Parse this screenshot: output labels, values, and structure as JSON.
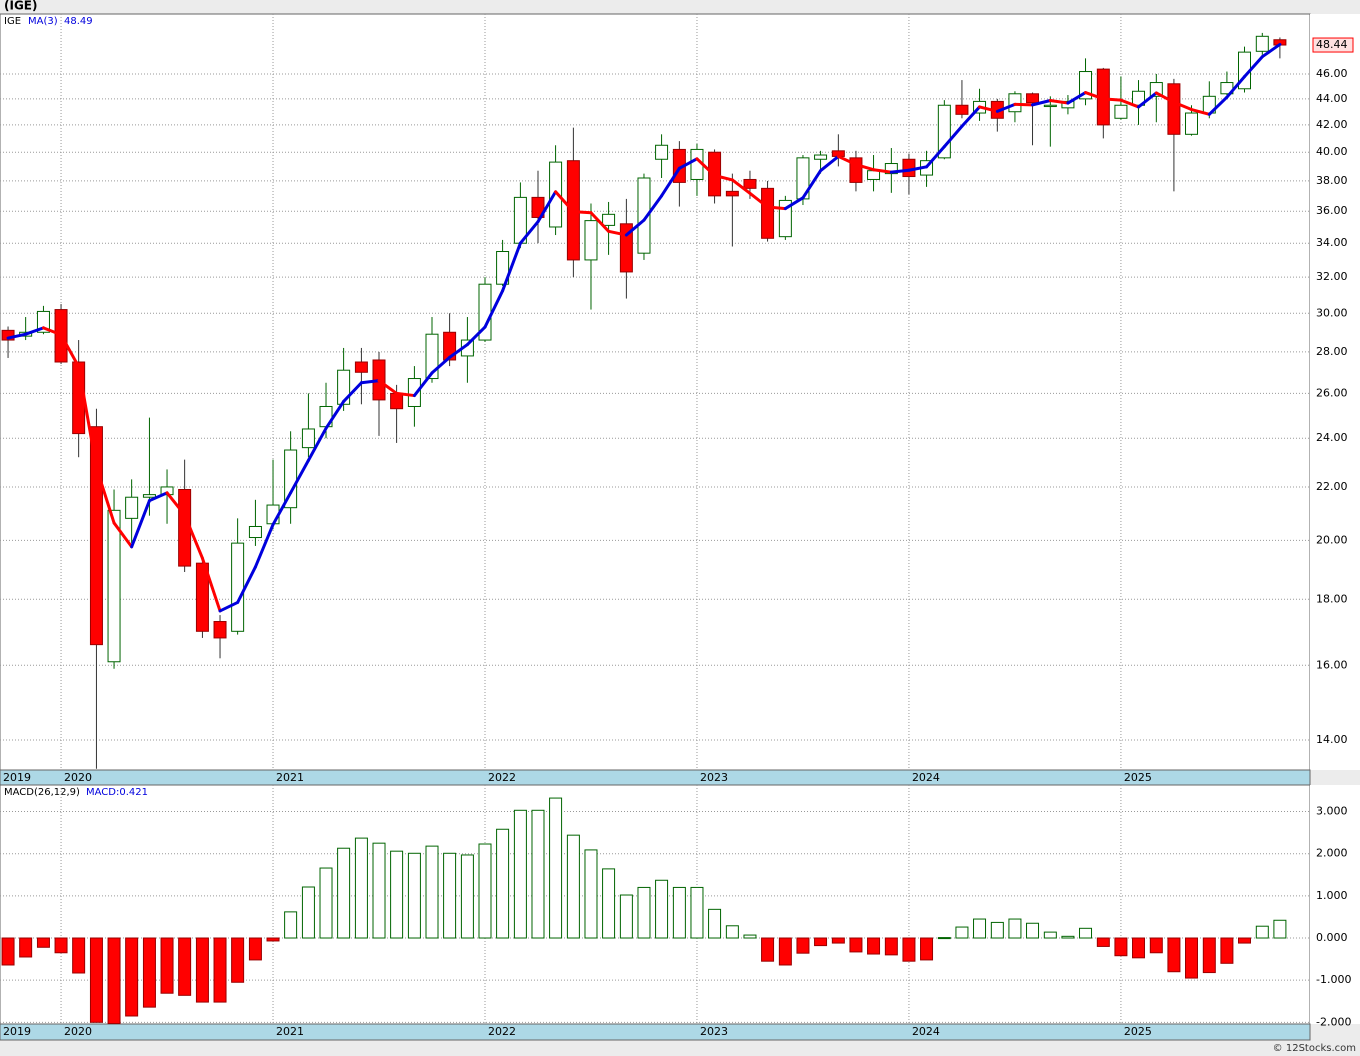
{
  "header": {
    "title": "(IGE)"
  },
  "footer": {
    "text": "© 12Stocks.com"
  },
  "chart_data": [
    {
      "type": "candlestick",
      "ticker": "IGE",
      "log_scale": true,
      "grid": true,
      "legend": "top-left",
      "up_color": "#006400",
      "down_color": "#ff0000",
      "xlim": [
        2019.712,
        2025.892
      ],
      "xticks": [
        {
          "value": 2019.712,
          "label": "2019"
        },
        2020,
        2021,
        2022,
        2023,
        2024,
        2025
      ],
      "ylim": [
        13.27,
        51.2
      ],
      "yticks": [
        {
          "value": 14,
          "label": "14.00"
        },
        {
          "value": 16,
          "label": "16.00"
        },
        {
          "value": 18,
          "label": "18.00"
        },
        {
          "value": 20,
          "label": "20.00"
        },
        {
          "value": 22,
          "label": "22.00"
        },
        {
          "value": 24,
          "label": "24.00"
        },
        {
          "value": 26,
          "label": "26.00"
        },
        {
          "value": 28,
          "label": "28.00"
        },
        {
          "value": 30,
          "label": "30.00"
        },
        {
          "value": 32,
          "label": "32.00"
        },
        {
          "value": 34,
          "label": "34.00"
        },
        {
          "value": 36,
          "label": "36.00"
        },
        {
          "value": 38,
          "label": "38.00"
        },
        {
          "value": 40,
          "label": "40.00"
        },
        {
          "value": 42,
          "label": "42.00"
        },
        {
          "value": 44,
          "label": "44.00"
        },
        {
          "value": 46,
          "label": "46.00"
        }
      ],
      "x": [
        2019.75,
        2019.833,
        2019.917,
        2020,
        2020.083,
        2020.167,
        2020.25,
        2020.333,
        2020.417,
        2020.5,
        2020.583,
        2020.667,
        2020.75,
        2020.833,
        2020.917,
        2021,
        2021.083,
        2021.167,
        2021.25,
        2021.333,
        2021.417,
        2021.5,
        2021.583,
        2021.667,
        2021.75,
        2021.833,
        2021.917,
        2022,
        2022.083,
        2022.167,
        2022.25,
        2022.333,
        2022.417,
        2022.5,
        2022.583,
        2022.667,
        2022.75,
        2022.833,
        2022.917,
        2023,
        2023.083,
        2023.167,
        2023.25,
        2023.333,
        2023.417,
        2023.5,
        2023.583,
        2023.667,
        2023.75,
        2023.833,
        2023.917,
        2024,
        2024.083,
        2024.167,
        2024.25,
        2024.333,
        2024.417,
        2024.5,
        2024.583,
        2024.667,
        2024.75,
        2024.833,
        2024.917,
        2025,
        2025.083,
        2025.167,
        2025.25,
        2025.333,
        2025.417,
        2025.5,
        2025.583,
        2025.667,
        2025.75
      ],
      "open": [
        29.1,
        28.8,
        29.0,
        30.2,
        27.5,
        24.5,
        16.1,
        20.8,
        21.6,
        21.7,
        21.9,
        19.2,
        17.3,
        17.0,
        20.1,
        20.6,
        21.2,
        23.6,
        24.5,
        25.5,
        27.5,
        27.6,
        26.0,
        25.4,
        26.7,
        29.0,
        27.8,
        28.6,
        31.6,
        34.0,
        36.9,
        35.0,
        39.4,
        33.0,
        35.1,
        35.2,
        33.4,
        39.5,
        40.2,
        38.1,
        40.0,
        37.3,
        38.1,
        37.5,
        34.4,
        36.8,
        39.5,
        40.1,
        39.6,
        38.1,
        38.5,
        39.5,
        38.4,
        39.6,
        43.5,
        42.9,
        43.8,
        43.0,
        44.4,
        43.4,
        43.3,
        44.0,
        46.4,
        42.5,
        43.5,
        44.2,
        45.2,
        41.3,
        42.9,
        44.4,
        44.8,
        47.9,
        48.9
      ],
      "high": [
        29.3,
        29.8,
        30.4,
        30.5,
        28.6,
        25.3,
        21.9,
        22.3,
        24.9,
        22.7,
        23.1,
        19.4,
        17.5,
        20.8,
        21.5,
        23.1,
        24.3,
        26.0,
        26.5,
        28.2,
        28.2,
        28.0,
        26.4,
        27.3,
        29.8,
        30.0,
        29.8,
        32.0,
        34.2,
        37.9,
        38.7,
        40.5,
        41.8,
        36.5,
        36.6,
        36.8,
        38.5,
        41.3,
        40.8,
        40.6,
        40.2,
        38.5,
        38.7,
        38.0,
        37.0,
        39.8,
        40.1,
        41.3,
        40.1,
        39.8,
        40.3,
        39.9,
        40.1,
        43.9,
        45.5,
        44.8,
        44.0,
        44.6,
        44.5,
        44.2,
        44.3,
        47.3,
        46.5,
        45.8,
        45.5,
        46.0,
        45.6,
        43.5,
        45.4,
        46.2,
        48.3,
        49.5,
        49.1
      ],
      "low": [
        27.7,
        28.6,
        28.9,
        27.4,
        23.2,
        13.3,
        15.9,
        19.9,
        20.9,
        20.6,
        18.9,
        16.8,
        16.2,
        16.9,
        19.8,
        20.4,
        20.6,
        23.2,
        24.0,
        25.2,
        25.5,
        24.1,
        23.8,
        24.5,
        26.5,
        27.3,
        26.5,
        28.5,
        31.5,
        33.7,
        34.0,
        34.5,
        32.0,
        30.2,
        33.3,
        30.8,
        33.0,
        38.2,
        36.3,
        37.0,
        36.5,
        33.8,
        36.8,
        34.1,
        34.2,
        36.4,
        38.5,
        39.0,
        37.3,
        37.3,
        37.2,
        37.1,
        37.6,
        39.5,
        42.5,
        42.3,
        41.5,
        42.2,
        40.5,
        40.4,
        42.8,
        43.5,
        41.0,
        42.4,
        42.0,
        42.2,
        37.3,
        41.2,
        42.5,
        44.3,
        44.5,
        47.6,
        47.3
      ],
      "close": [
        28.6,
        29.0,
        30.1,
        27.5,
        24.2,
        16.6,
        21.1,
        21.6,
        21.7,
        22.0,
        19.1,
        17.0,
        16.8,
        19.9,
        20.5,
        21.3,
        23.5,
        24.4,
        25.4,
        27.1,
        27.0,
        25.7,
        25.3,
        26.7,
        28.9,
        27.6,
        28.6,
        31.6,
        33.5,
        36.9,
        35.6,
        39.3,
        33.0,
        35.4,
        35.8,
        32.3,
        38.2,
        40.5,
        37.9,
        40.2,
        37.0,
        37.0,
        37.5,
        34.3,
        36.7,
        39.6,
        39.8,
        39.7,
        37.9,
        38.7,
        39.2,
        38.3,
        39.4,
        43.5,
        42.8,
        43.8,
        42.5,
        44.4,
        43.7,
        43.5,
        43.8,
        46.2,
        42.0,
        43.5,
        44.6,
        45.3,
        41.3,
        42.9,
        44.2,
        45.3,
        47.83,
        49.2,
        48.44
      ],
      "series": [
        {
          "name": "MA(3)",
          "color": "#0000dd",
          "up_color": "#0000dd",
          "down_color": "#ff0000",
          "values": [
            28.7,
            28.9,
            29.23,
            28.87,
            27.27,
            22.77,
            20.63,
            19.77,
            21.47,
            21.77,
            20.93,
            19.37,
            17.63,
            17.9,
            19.07,
            20.57,
            21.77,
            23.07,
            24.43,
            25.63,
            26.5,
            26.6,
            26.0,
            25.9,
            26.97,
            27.73,
            28.37,
            29.27,
            31.23,
            34.0,
            35.33,
            37.27,
            35.97,
            35.9,
            34.73,
            34.5,
            35.43,
            37.0,
            38.87,
            39.53,
            38.37,
            38.07,
            37.17,
            36.27,
            36.17,
            36.87,
            38.7,
            39.7,
            39.13,
            38.77,
            38.6,
            38.73,
            38.97,
            40.4,
            41.9,
            43.37,
            43.03,
            43.57,
            43.53,
            43.87,
            43.67,
            44.5,
            44.0,
            43.9,
            43.37,
            44.47,
            43.73,
            43.17,
            42.8,
            44.13,
            45.78,
            47.44,
            48.49
          ]
        }
      ]
    },
    {
      "type": "bar",
      "title": "MACD(26,12,9)",
      "legend_text": "MACD:0.421",
      "grid": true,
      "pos_color": "#006400",
      "neg_color": "#ff0000",
      "xlim": [
        2019.712,
        2025.892
      ],
      "xticks": [
        {
          "value": 2019.712,
          "label": "2019"
        },
        2020,
        2021,
        2022,
        2023,
        2024,
        2025
      ],
      "ylim": [
        -2.04,
        3.63
      ],
      "yticks": [
        {
          "value": 3,
          "label": "3.000"
        },
        {
          "value": 2,
          "label": "2.000"
        },
        {
          "value": 1,
          "label": "1.000"
        },
        {
          "value": 0,
          "label": "0.000"
        },
        {
          "value": -1,
          "label": "-1.000"
        },
        {
          "value": -2,
          "label": "-2.000"
        }
      ],
      "x": [
        2019.75,
        2019.833,
        2019.917,
        2020,
        2020.083,
        2020.167,
        2020.25,
        2020.333,
        2020.417,
        2020.5,
        2020.583,
        2020.667,
        2020.75,
        2020.833,
        2020.917,
        2021,
        2021.083,
        2021.167,
        2021.25,
        2021.333,
        2021.417,
        2021.5,
        2021.583,
        2021.667,
        2021.75,
        2021.833,
        2021.917,
        2022,
        2022.083,
        2022.167,
        2022.25,
        2022.333,
        2022.417,
        2022.5,
        2022.583,
        2022.667,
        2022.75,
        2022.833,
        2022.917,
        2023,
        2023.083,
        2023.167,
        2023.25,
        2023.333,
        2023.417,
        2023.5,
        2023.583,
        2023.667,
        2023.75,
        2023.833,
        2023.917,
        2024,
        2024.083,
        2024.167,
        2024.25,
        2024.333,
        2024.417,
        2024.5,
        2024.583,
        2024.667,
        2024.75,
        2024.833,
        2024.917,
        2025,
        2025.083,
        2025.167,
        2025.25,
        2025.333,
        2025.417,
        2025.5,
        2025.583,
        2025.667,
        2025.75
      ],
      "values": [
        -0.64,
        -0.45,
        -0.22,
        -0.35,
        -0.83,
        -2.0,
        -2.03,
        -1.85,
        -1.64,
        -1.31,
        -1.36,
        -1.52,
        -1.52,
        -1.05,
        -0.52,
        -0.07,
        0.62,
        1.21,
        1.66,
        2.13,
        2.37,
        2.25,
        2.06,
        2.01,
        2.18,
        2.01,
        1.97,
        2.23,
        2.58,
        3.03,
        3.03,
        3.32,
        2.44,
        2.09,
        1.64,
        1.02,
        1.2,
        1.37,
        1.2,
        1.2,
        0.68,
        0.29,
        0.07,
        -0.55,
        -0.64,
        -0.36,
        -0.18,
        -0.12,
        -0.33,
        -0.38,
        -0.4,
        -0.55,
        -0.52,
        0.01,
        0.26,
        0.45,
        0.37,
        0.45,
        0.35,
        0.14,
        0.04,
        0.23,
        -0.2,
        -0.42,
        -0.47,
        -0.35,
        -0.8,
        -0.95,
        -0.82,
        -0.6,
        -0.12,
        0.28,
        0.421
      ]
    }
  ]
}
